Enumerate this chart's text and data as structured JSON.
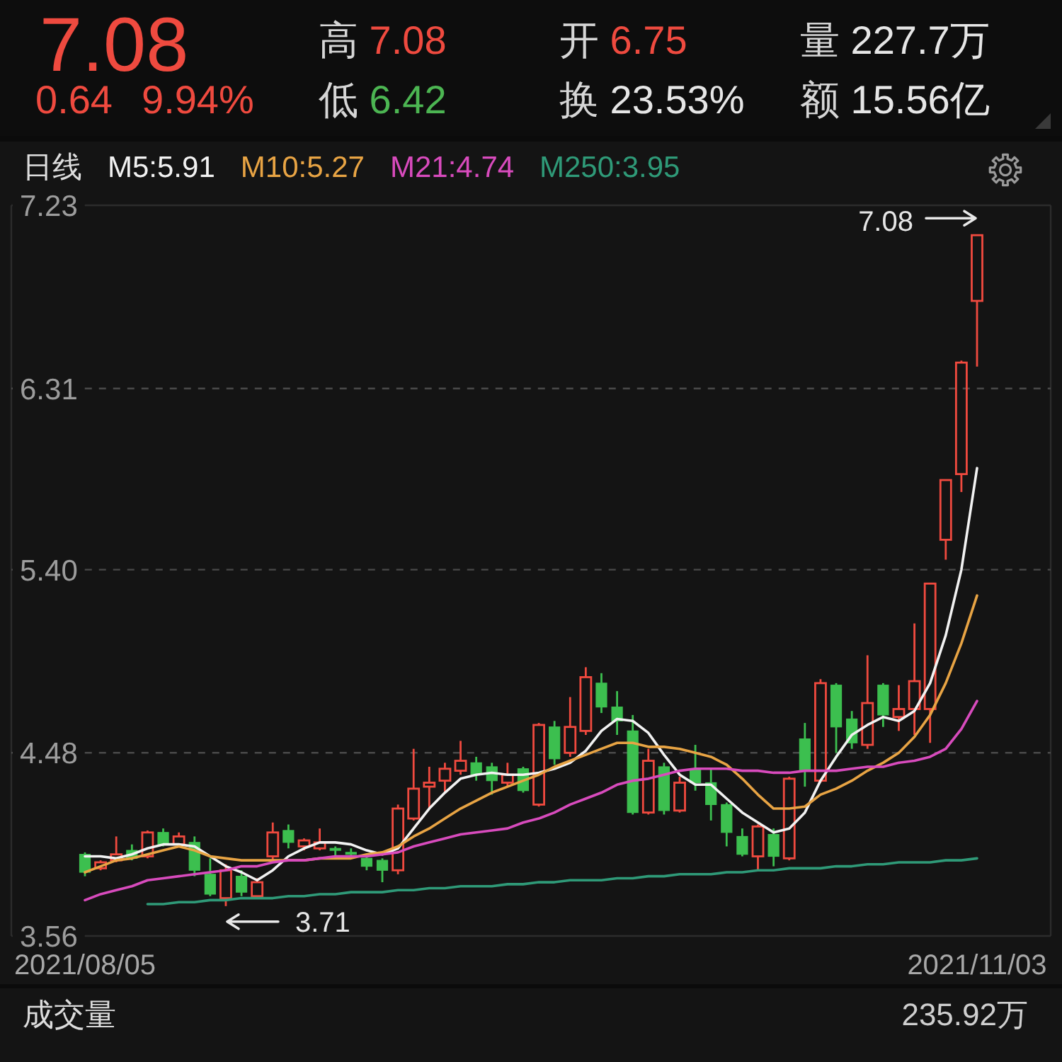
{
  "chart_data": [
    {
      "type": "other",
      "annotations": [
        "7.08",
        "高 7.08",
        "开 6.75",
        "量 227.7万",
        "0.64",
        "9.94%",
        "低 6.42",
        "换 23.53%",
        "额 15.56亿"
      ]
    },
    {
      "type": "candlestick",
      "legend_title": "日线",
      "legend": "top left",
      "grid": "y",
      "categories": [
        "2021/08/05",
        null,
        null,
        null,
        null,
        null,
        null,
        null,
        null,
        null,
        null,
        null,
        null,
        null,
        null,
        null,
        null,
        null,
        null,
        null,
        null,
        null,
        null,
        null,
        null,
        null,
        null,
        null,
        null,
        null,
        null,
        null,
        null,
        null,
        null,
        null,
        null,
        null,
        null,
        null,
        null,
        null,
        null,
        null,
        null,
        null,
        null,
        null,
        null,
        null,
        null,
        null,
        null,
        null,
        null,
        null,
        null,
        "2021/11/03"
      ],
      "ylim": [
        3.56,
        7.23
      ],
      "yticks": [
        3.56,
        4.48,
        {
          "value": 5.4,
          "label": "5.40"
        },
        6.31,
        7.23
      ],
      "ohlc": [
        [
          3.97,
          3.98,
          3.86,
          3.88
        ],
        [
          3.9,
          3.94,
          3.89,
          3.93
        ],
        [
          3.94,
          4.06,
          3.93,
          3.97
        ],
        [
          3.99,
          4.02,
          3.94,
          3.95
        ],
        [
          3.96,
          4.09,
          3.95,
          4.08
        ],
        [
          4.08,
          4.1,
          4.01,
          4.02
        ],
        [
          4.02,
          4.08,
          4.01,
          4.06
        ],
        [
          4.03,
          4.06,
          3.86,
          3.89
        ],
        [
          3.87,
          3.95,
          3.76,
          3.77
        ],
        [
          3.75,
          3.92,
          3.71,
          3.89
        ],
        [
          3.86,
          3.89,
          3.76,
          3.78
        ],
        [
          3.76,
          3.85,
          3.75,
          3.83
        ],
        [
          3.96,
          4.13,
          3.94,
          4.08
        ],
        [
          4.09,
          4.12,
          4.0,
          4.03
        ],
        [
          4.01,
          4.05,
          3.99,
          4.04
        ],
        [
          4.0,
          4.1,
          3.99,
          4.03
        ],
        [
          4.0,
          4.01,
          3.96,
          3.99
        ],
        [
          3.98,
          4.0,
          3.95,
          3.97
        ],
        [
          3.95,
          3.97,
          3.89,
          3.91
        ],
        [
          3.94,
          3.95,
          3.83,
          3.89
        ],
        [
          3.89,
          4.22,
          3.87,
          4.2
        ],
        [
          4.15,
          4.5,
          4.14,
          4.3
        ],
        [
          4.31,
          4.41,
          4.2,
          4.33
        ],
        [
          4.34,
          4.43,
          4.28,
          4.4
        ],
        [
          4.39,
          4.54,
          4.37,
          4.44
        ],
        [
          4.43,
          4.46,
          4.34,
          4.37
        ],
        [
          4.41,
          4.43,
          4.27,
          4.34
        ],
        [
          4.33,
          4.43,
          4.31,
          4.37
        ],
        [
          4.4,
          4.41,
          4.28,
          4.29
        ],
        [
          4.22,
          4.63,
          4.21,
          4.62
        ],
        [
          4.61,
          4.64,
          4.42,
          4.45
        ],
        [
          4.48,
          4.76,
          4.46,
          4.61
        ],
        [
          4.59,
          4.91,
          4.57,
          4.86
        ],
        [
          4.83,
          4.88,
          4.68,
          4.71
        ],
        [
          4.71,
          4.79,
          4.57,
          4.64
        ],
        [
          4.59,
          4.67,
          4.17,
          4.18
        ],
        [
          4.18,
          4.5,
          4.17,
          4.44
        ],
        [
          4.41,
          4.43,
          4.17,
          4.19
        ],
        [
          4.19,
          4.36,
          4.18,
          4.33
        ],
        [
          4.4,
          4.52,
          4.29,
          4.33
        ],
        [
          4.33,
          4.4,
          4.14,
          4.22
        ],
        [
          4.22,
          4.23,
          4.01,
          4.08
        ],
        [
          4.06,
          4.1,
          3.96,
          3.97
        ],
        [
          3.96,
          4.12,
          3.89,
          4.11
        ],
        [
          4.07,
          4.1,
          3.91,
          3.96
        ],
        [
          3.95,
          4.36,
          3.94,
          4.35
        ],
        [
          4.55,
          4.63,
          4.31,
          4.39
        ],
        [
          4.34,
          4.85,
          4.33,
          4.83
        ],
        [
          4.82,
          4.83,
          4.48,
          4.61
        ],
        [
          4.65,
          4.69,
          4.5,
          4.53
        ],
        [
          4.52,
          4.97,
          4.5,
          4.73
        ],
        [
          4.82,
          4.83,
          4.61,
          4.67
        ],
        [
          4.66,
          4.82,
          4.59,
          4.7
        ],
        [
          4.7,
          5.13,
          4.57,
          4.84
        ],
        [
          4.7,
          5.33,
          4.53,
          5.33
        ],
        [
          5.55,
          5.85,
          5.45,
          5.85
        ],
        [
          5.88,
          6.45,
          5.79,
          6.44
        ],
        [
          6.75,
          7.08,
          6.42,
          7.08
        ]
      ],
      "colors": [
        "#3cbf4f",
        "#f04a3f",
        "#f04a3f",
        "#3cbf4f",
        "#f04a3f",
        "#3cbf4f",
        "#f04a3f",
        "#3cbf4f",
        "#3cbf4f",
        "#f04a3f",
        "#3cbf4f",
        "#f04a3f",
        "#f04a3f",
        "#3cbf4f",
        "#f04a3f",
        "#f04a3f",
        "#3cbf4f",
        "#3cbf4f",
        "#3cbf4f",
        "#3cbf4f",
        "#f04a3f",
        "#f04a3f",
        "#f04a3f",
        "#f04a3f",
        "#f04a3f",
        "#3cbf4f",
        "#3cbf4f",
        "#f04a3f",
        "#3cbf4f",
        "#f04a3f",
        "#3cbf4f",
        "#f04a3f",
        "#f04a3f",
        "#3cbf4f",
        "#3cbf4f",
        "#3cbf4f",
        "#f04a3f",
        "#3cbf4f",
        "#f04a3f",
        "#3cbf4f",
        "#3cbf4f",
        "#3cbf4f",
        "#3cbf4f",
        "#f04a3f",
        "#3cbf4f",
        "#f04a3f",
        "#3cbf4f",
        "#f04a3f",
        "#3cbf4f",
        "#3cbf4f",
        "#f04a3f",
        "#3cbf4f",
        "#f04a3f",
        "#f04a3f",
        "#f04a3f",
        "#f04a3f",
        "#f04a3f",
        "#f04a3f"
      ],
      "series": [
        {
          "name": "M5:5.91",
          "type": "line",
          "color": "#f2f2f2",
          "values": [
            3.96,
            3.96,
            3.95,
            3.97,
            4.0,
            4.02,
            4.02,
            4.01,
            3.96,
            3.91,
            3.88,
            3.84,
            3.89,
            3.96,
            4.0,
            4.03,
            4.03,
            4.02,
            3.99,
            3.97,
            4.0,
            4.1,
            4.2,
            4.28,
            4.35,
            4.37,
            4.38,
            4.37,
            4.37,
            4.38,
            4.4,
            4.43,
            4.49,
            4.59,
            4.65,
            4.64,
            4.58,
            4.47,
            4.37,
            4.32,
            4.32,
            4.25,
            4.18,
            4.13,
            4.08,
            4.1,
            4.18,
            4.34,
            4.46,
            4.57,
            4.62,
            4.66,
            4.64,
            4.69,
            4.83,
            5.07,
            5.4,
            5.91
          ]
        },
        {
          "name": "M10:5.27",
          "type": "line",
          "color": "#e8a444",
          "values": [
            3.88,
            3.91,
            3.94,
            3.95,
            3.97,
            3.99,
            4.01,
            3.99,
            3.96,
            3.95,
            3.94,
            3.94,
            3.94,
            3.94,
            3.94,
            3.95,
            3.95,
            3.95,
            3.97,
            3.98,
            4.01,
            4.06,
            4.1,
            4.15,
            4.2,
            4.24,
            4.28,
            4.31,
            4.34,
            4.37,
            4.41,
            4.44,
            4.47,
            4.5,
            4.53,
            4.53,
            4.51,
            4.51,
            4.5,
            4.48,
            4.46,
            4.42,
            4.35,
            4.27,
            4.2,
            4.2,
            4.21,
            4.27,
            4.3,
            4.34,
            4.39,
            4.43,
            4.48,
            4.56,
            4.67,
            4.83,
            5.03,
            5.27
          ]
        },
        {
          "name": "M21:4.74",
          "type": "line",
          "color": "#d84bbd",
          "values": [
            3.74,
            3.77,
            3.79,
            3.81,
            3.84,
            3.85,
            3.86,
            3.87,
            3.88,
            3.89,
            3.91,
            3.91,
            3.93,
            3.94,
            3.94,
            3.95,
            3.96,
            3.96,
            3.96,
            3.97,
            3.98,
            4.01,
            4.03,
            4.05,
            4.07,
            4.08,
            4.09,
            4.1,
            4.13,
            4.15,
            4.18,
            4.22,
            4.25,
            4.28,
            4.32,
            4.34,
            4.35,
            4.37,
            4.39,
            4.4,
            4.4,
            4.4,
            4.39,
            4.39,
            4.38,
            4.38,
            4.39,
            4.39,
            4.39,
            4.4,
            4.41,
            4.41,
            4.43,
            4.44,
            4.46,
            4.5,
            4.6,
            4.74
          ]
        },
        {
          "name": "M250:3.95",
          "type": "line",
          "color": "#2f9a78",
          "values": [
            null,
            null,
            null,
            null,
            3.72,
            3.72,
            3.73,
            3.73,
            3.74,
            3.74,
            3.75,
            3.75,
            3.75,
            3.76,
            3.76,
            3.77,
            3.77,
            3.78,
            3.78,
            3.78,
            3.79,
            3.79,
            3.8,
            3.8,
            3.81,
            3.81,
            3.81,
            3.82,
            3.82,
            3.83,
            3.83,
            3.84,
            3.84,
            3.84,
            3.85,
            3.85,
            3.86,
            3.86,
            3.87,
            3.87,
            3.87,
            3.88,
            3.88,
            3.89,
            3.89,
            3.9,
            3.9,
            3.9,
            3.91,
            3.91,
            3.92,
            3.92,
            3.93,
            3.93,
            3.93,
            3.94,
            3.94,
            3.95
          ]
        }
      ],
      "annotations": [
        {
          "text": "7.08",
          "x": "2021/11/03",
          "y": 7.08
        },
        "3.71"
      ]
    },
    {
      "type": "other",
      "title": "成交量",
      "annotations": [
        "235.92万"
      ]
    }
  ]
}
